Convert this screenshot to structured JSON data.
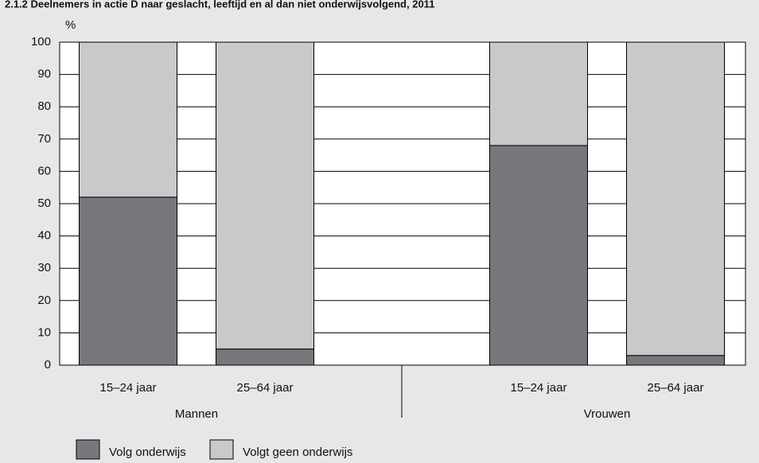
{
  "chart_data": {
    "type": "stacked-bar",
    "title": "2.1.2 Deelnemers in actie D naar geslacht, leeftijd en al dan niet onderwijsvolgend, 2011",
    "y_axis_label": "%",
    "groups": [
      {
        "name": "Mannen",
        "categories": [
          "15–24 jaar",
          "25–64 jaar"
        ]
      },
      {
        "name": "Vrouwen",
        "categories": [
          "15–24 jaar",
          "25–64 jaar"
        ]
      }
    ],
    "series": [
      {
        "name": "Volg onderwijs",
        "color": "#77787b",
        "values": [
          52,
          5,
          68,
          3
        ]
      },
      {
        "name": "Volgt geen onderwijs",
        "color": "#c8c9cb",
        "values": [
          48,
          95,
          32,
          97
        ]
      }
    ],
    "ylim": [
      0,
      100
    ],
    "yticks": [
      0,
      10,
      20,
      30,
      40,
      50,
      60,
      70,
      80,
      90,
      100
    ],
    "grid": true
  }
}
